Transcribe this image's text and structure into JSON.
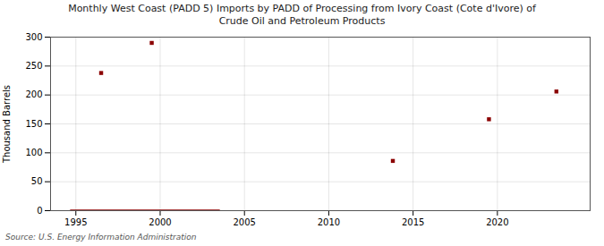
{
  "chart_data": {
    "type": "scatter",
    "title": "Monthly West Coast (PADD 5) Imports by PADD of Processing from Ivory Coast (Cote d'Ivore) of",
    "subtitle": "Crude Oil and Petroleum Products",
    "ylabel": "Thousand Barrels",
    "annotations": [
      "Source: U.S. Energy Information Administration"
    ],
    "series": [
      {
        "type": "scatter",
        "marker": "square",
        "color": "#8b0000",
        "x": [
          1996.5,
          1999.5,
          2013.8,
          2019.5,
          2023.5
        ],
        "values": [
          238,
          290,
          86,
          158,
          206
        ]
      },
      {
        "type": "line",
        "line_style": "solid",
        "color": "#8b0000",
        "x": [
          1994.7,
          2003.5
        ],
        "values": [
          0,
          0
        ]
      }
    ],
    "xlim": [
      1993.5,
      2025.5
    ],
    "ylim": [
      0,
      300
    ],
    "xticks": [
      1995,
      2000,
      2005,
      2010,
      2015,
      2020
    ],
    "yticks": [
      0,
      50,
      100,
      150,
      200,
      250,
      300
    ],
    "grid": true
  }
}
